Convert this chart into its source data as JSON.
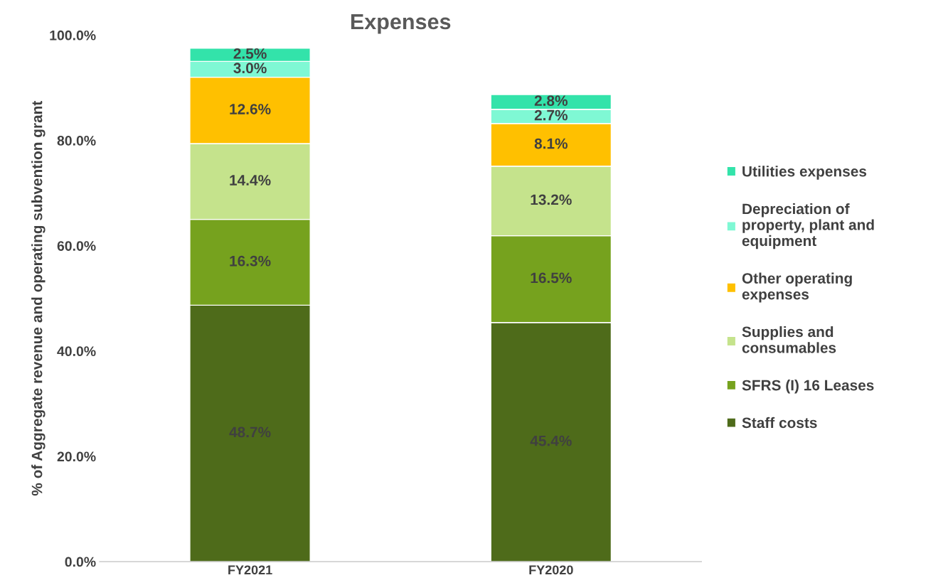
{
  "chart_data": {
    "type": "bar",
    "title": "Expenses",
    "ylabel": "% of Aggregate revenue and operating subvention grant",
    "categories": [
      "FY2021",
      "FY2020"
    ],
    "stacked": true,
    "legend": "right",
    "grid": false,
    "ylim": [
      0,
      100
    ],
    "yticks": [
      {
        "value": 0,
        "label": "0.0%"
      },
      {
        "value": 20,
        "label": "20.0%"
      },
      {
        "value": 40,
        "label": "40.0%"
      },
      {
        "value": 60,
        "label": "60.0%"
      },
      {
        "value": 80,
        "label": "80.0%"
      },
      {
        "value": 100,
        "label": "100.0%"
      }
    ],
    "series": [
      {
        "name": "Staff costs",
        "color": "#4e6b1a",
        "values": [
          48.7,
          45.4
        ],
        "value_labels": [
          "48.7%",
          "45.4%"
        ]
      },
      {
        "name": "SFRS (I) 16 Leases",
        "color": "#76a21e",
        "values": [
          16.3,
          16.5
        ],
        "value_labels": [
          "16.3%",
          "16.5%"
        ]
      },
      {
        "name": "Supplies and consumables",
        "color": "#c5e38c",
        "values": [
          14.4,
          13.2
        ],
        "value_labels": [
          "14.4%",
          "13.2%"
        ]
      },
      {
        "name": "Other operating expenses",
        "color": "#ffc000",
        "values": [
          12.6,
          8.1
        ],
        "value_labels": [
          "12.6%",
          "8.1%"
        ]
      },
      {
        "name": "Depreciation of property, plant and equipment",
        "color": "#7ff8d4",
        "values": [
          3.0,
          2.7
        ],
        "value_labels": [
          "3.0%",
          "2.7%"
        ]
      },
      {
        "name": "Utilities expenses",
        "color": "#33e3aa",
        "values": [
          2.5,
          2.8
        ],
        "value_labels": [
          "2.5%",
          "2.8%"
        ]
      }
    ]
  }
}
